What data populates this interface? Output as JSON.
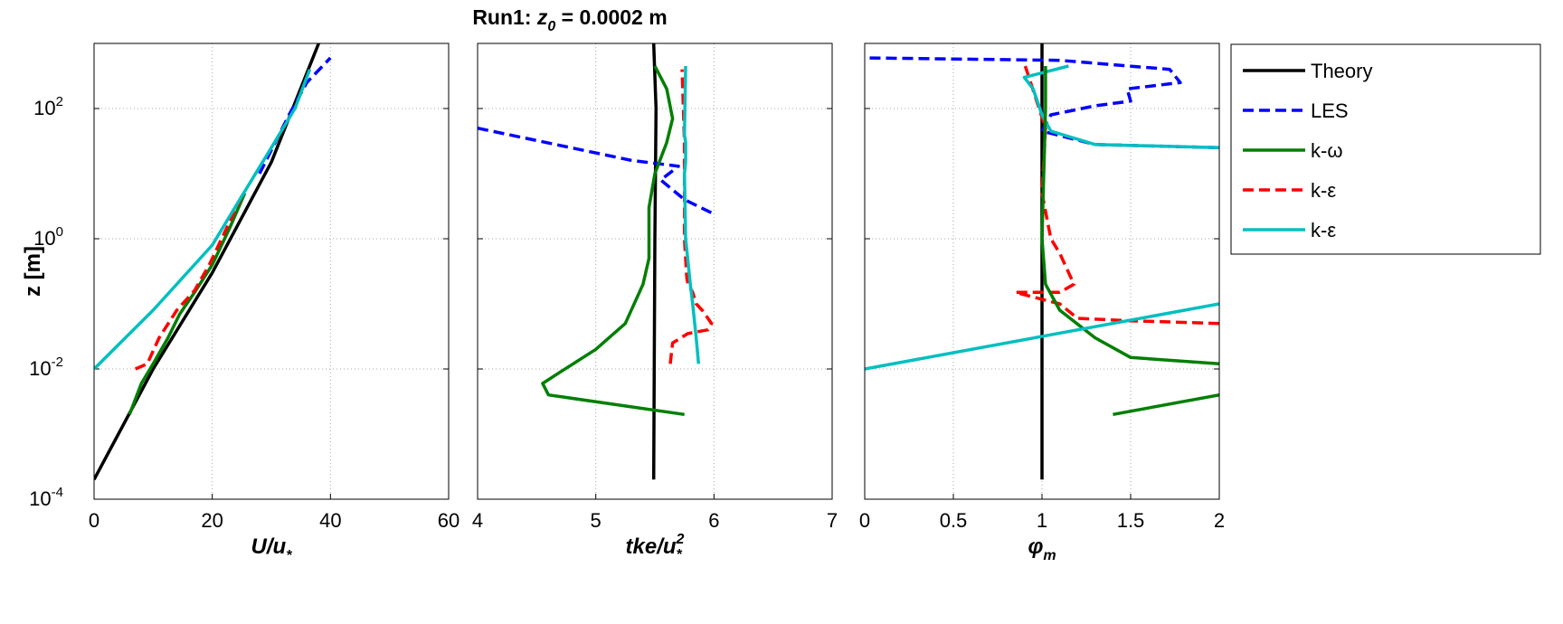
{
  "chart_data": {
    "type": "line",
    "title_prefix": "Run1: ",
    "title_var": "z",
    "title_sub": "0",
    "title_suffix": " = 0.0002 m",
    "ylabel": "z [m]",
    "y_scale": "log",
    "ylim": [
      0.0001,
      1000
    ],
    "y_ticks": [
      {
        "base": "10",
        "exp": "-4"
      },
      {
        "base": "10",
        "exp": "-2"
      },
      {
        "base": "10",
        "exp": "0"
      },
      {
        "base": "10",
        "exp": "2"
      }
    ],
    "grid": true,
    "legend_position": "right",
    "legend": [
      {
        "label": "Theory",
        "color": "#000000",
        "dash": "solid"
      },
      {
        "label": "LES",
        "color": "#0000ff",
        "dash": "dashed"
      },
      {
        "label": "k-ω",
        "color": "#007f00",
        "dash": "solid"
      },
      {
        "label": "k-ε",
        "color": "#ff0000",
        "dash": "dashed"
      },
      {
        "label": "k-ε",
        "color": "#00bfbf",
        "dash": "solid"
      }
    ],
    "panels": [
      {
        "xlabel_main": "U/u",
        "xlabel_sub": "*",
        "xlabel_sup": "",
        "xlim": [
          0,
          60
        ],
        "x_ticks": [
          "0",
          "20",
          "40",
          "60"
        ],
        "series": [
          {
            "legend_index": 0,
            "points": [
              [
                0,
                0.0002
              ],
              [
                10,
                0.01
              ],
              [
                20,
                0.3
              ],
              [
                30,
                15
              ],
              [
                38,
                1000
              ]
            ]
          },
          {
            "legend_index": 1,
            "points": [
              [
                28,
                10
              ],
              [
                33,
                80
              ],
              [
                36,
                250
              ],
              [
                40,
                600
              ]
            ]
          },
          {
            "legend_index": 2,
            "points": [
              [
                6,
                0.002
              ],
              [
                8,
                0.006
              ],
              [
                10,
                0.012
              ],
              [
                12.5,
                0.03
              ],
              [
                14.5,
                0.07
              ],
              [
                17,
                0.15
              ],
              [
                20,
                0.4
              ],
              [
                23,
                1.5
              ],
              [
                25.5,
                5
              ]
            ]
          },
          {
            "legend_index": 3,
            "points": [
              [
                7,
                0.01
              ],
              [
                9,
                0.012
              ],
              [
                11,
                0.03
              ],
              [
                14,
                0.08
              ],
              [
                17,
                0.16
              ],
              [
                19.5,
                0.4
              ],
              [
                22,
                1.2
              ],
              [
                25,
                4.5
              ]
            ]
          },
          {
            "legend_index": 4,
            "points": [
              [
                0,
                0.01
              ],
              [
                10,
                0.08
              ],
              [
                20,
                0.8
              ],
              [
                25,
                4.5
              ],
              [
                30,
                25
              ],
              [
                34,
                100
              ],
              [
                36.5,
                400
              ]
            ]
          }
        ]
      },
      {
        "xlabel_main": "tke/u",
        "xlabel_sub": "*",
        "xlabel_sup": "2",
        "xlim": [
          4,
          7
        ],
        "x_ticks": [
          "4",
          "5",
          "6",
          "7"
        ],
        "series": [
          {
            "legend_index": 0,
            "points": [
              [
                5.49,
                0.0002
              ],
              [
                5.5,
                1
              ],
              [
                5.51,
                100
              ],
              [
                5.49,
                1000
              ]
            ]
          },
          {
            "legend_index": 1,
            "points": [
              [
                4,
                50
              ],
              [
                5.3,
                16
              ],
              [
                5.7,
                13
              ],
              [
                5.55,
                8
              ],
              [
                5.75,
                4
              ],
              [
                6,
                2.4
              ]
            ]
          },
          {
            "legend_index": 2,
            "points": [
              [
                5.75,
                0.002
              ],
              [
                4.6,
                0.004
              ],
              [
                4.55,
                0.006
              ],
              [
                4.7,
                0.009
              ],
              [
                5,
                0.02
              ],
              [
                5.25,
                0.05
              ],
              [
                5.4,
                0.2
              ],
              [
                5.45,
                0.5
              ],
              [
                5.45,
                3
              ],
              [
                5.5,
                10
              ],
              [
                5.6,
                30
              ],
              [
                5.65,
                70
              ],
              [
                5.6,
                200
              ],
              [
                5.5,
                450
              ]
            ]
          },
          {
            "legend_index": 3,
            "points": [
              [
                5.63,
                0.012
              ],
              [
                5.65,
                0.025
              ],
              [
                5.78,
                0.035
              ],
              [
                5.95,
                0.04
              ],
              [
                5.98,
                0.05
              ],
              [
                5.9,
                0.08
              ],
              [
                5.85,
                0.1
              ],
              [
                5.82,
                0.15
              ],
              [
                5.78,
                0.2
              ],
              [
                5.77,
                0.25
              ],
              [
                5.75,
                1
              ],
              [
                5.75,
                30
              ],
              [
                5.73,
                400
              ]
            ]
          },
          {
            "legend_index": 4,
            "points": [
              [
                5.87,
                0.012
              ],
              [
                5.85,
                0.03
              ],
              [
                5.82,
                0.1
              ],
              [
                5.8,
                0.2
              ],
              [
                5.76,
                1
              ],
              [
                5.75,
                10
              ],
              [
                5.76,
                15
              ],
              [
                5.76,
                30
              ],
              [
                5.75,
                40
              ],
              [
                5.76,
                450
              ]
            ]
          }
        ]
      },
      {
        "xlabel_main": "φ",
        "xlabel_sub": "m",
        "xlabel_sup": "",
        "xlim": [
          0,
          2
        ],
        "x_ticks": [
          "0",
          "0.5",
          "1",
          "1.5",
          "2"
        ],
        "series": [
          {
            "legend_index": 0,
            "points": [
              [
                1,
                0.0002
              ],
              [
                1,
                1000
              ]
            ]
          },
          {
            "legend_index": 1,
            "points": [
              [
                2,
                25
              ],
              [
                1.3,
                28
              ],
              [
                1,
                45
              ],
              [
                1.05,
                80
              ],
              [
                1.3,
                110
              ],
              [
                1.5,
                130
              ],
              [
                1.48,
                200
              ],
              [
                1.78,
                250
              ],
              [
                1.72,
                400
              ],
              [
                1.1,
                550
              ],
              [
                0,
                600
              ]
            ]
          },
          {
            "legend_index": 2,
            "points": [
              [
                1.4,
                0.002
              ],
              [
                2,
                0.004
              ]
            ]
          },
          {
            "legend_index": 3,
            "points": [
              [
                2,
                0.05
              ],
              [
                1.5,
                0.055
              ],
              [
                1.2,
                0.06
              ],
              [
                1.1,
                0.1
              ],
              [
                0.85,
                0.15
              ],
              [
                1.1,
                0.15
              ],
              [
                1.18,
                0.2
              ],
              [
                1.1,
                0.6
              ],
              [
                1.05,
                1
              ],
              [
                1,
                5
              ],
              [
                1.02,
                50
              ],
              [
                0.9,
                500
              ]
            ]
          },
          {
            "legend_index": 4,
            "points": [
              [
                2,
                25
              ],
              [
                1.3,
                28
              ],
              [
                1.05,
                45
              ],
              [
                1,
                80
              ],
              [
                0.95,
                200
              ],
              [
                0.9,
                300
              ],
              [
                1.15,
                450
              ]
            ]
          },
          {
            "legend_index": 2,
            "points": [
              [
                2,
                0.012
              ],
              [
                1.5,
                0.015
              ],
              [
                1.3,
                0.03
              ],
              [
                1.1,
                0.08
              ],
              [
                1.02,
                0.2
              ],
              [
                1,
                1
              ],
              [
                1.02,
                100
              ],
              [
                1.02,
                450
              ]
            ]
          },
          {
            "legend_index": 4,
            "points": [
              [
                0,
                0.01
              ],
              [
                2,
                0.1
              ]
            ]
          }
        ]
      }
    ]
  }
}
